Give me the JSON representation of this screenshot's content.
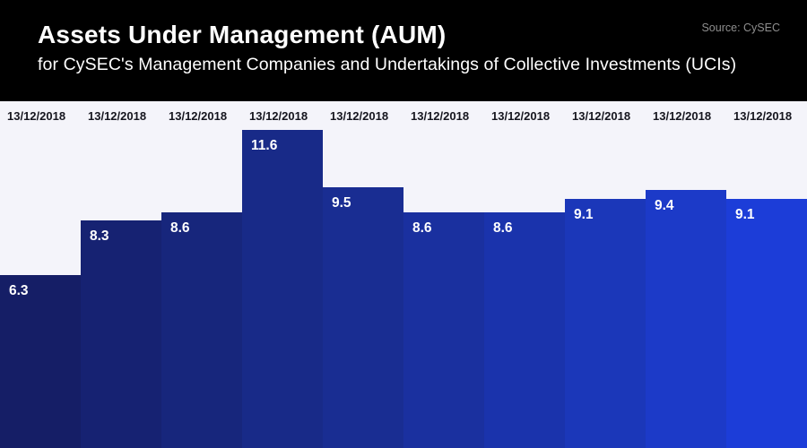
{
  "header": {
    "title": "Assets Under Management (AUM)",
    "subtitle": "for CySEC's Management Companies and Undertakings of Collective Investments (UCIs)",
    "source": "Source: CySEC"
  },
  "colors": {
    "header_bg": "#000000",
    "chart_bg": "#f4f4fa",
    "title_text": "#ffffff",
    "source_text": "#8e8e8e",
    "date_text": "#15151e",
    "value_text": "#ffffff",
    "bar_colors": [
      "#151e66",
      "#162272",
      "#17267c",
      "#182a88",
      "#192d92",
      "#1a309f",
      "#1a33ac",
      "#1b37b9",
      "#1c3ac8",
      "#1c3dd8"
    ]
  },
  "chart_data": {
    "type": "bar",
    "title": "Assets Under Management (AUM)",
    "subtitle": "for CySEC's Management Companies and Undertakings of Collective Investments (UCIs)",
    "source": "Source: CySEC",
    "categories": [
      "13/12/2018",
      "13/12/2018",
      "13/12/2018",
      "13/12/2018",
      "13/12/2018",
      "13/12/2018",
      "13/12/2018",
      "13/12/2018",
      "13/12/2018",
      "13/12/2018"
    ],
    "values": [
      6.3,
      8.3,
      8.6,
      11.6,
      9.5,
      8.6,
      8.6,
      9.1,
      9.4,
      9.1
    ],
    "xlabel": "",
    "ylabel": "",
    "ylim": [
      0,
      12.65
    ],
    "grid": false,
    "legend": false,
    "value_labels": [
      6.3,
      8.3,
      8.6,
      11.6,
      9.5,
      8.6,
      8.6,
      9.1,
      9.4,
      9.1
    ],
    "bar_colors": [
      "#151e66",
      "#162272",
      "#17267c",
      "#182a88",
      "#192d92",
      "#1a309f",
      "#1a33ac",
      "#1b37b9",
      "#1c3ac8",
      "#1c3dd8"
    ]
  }
}
